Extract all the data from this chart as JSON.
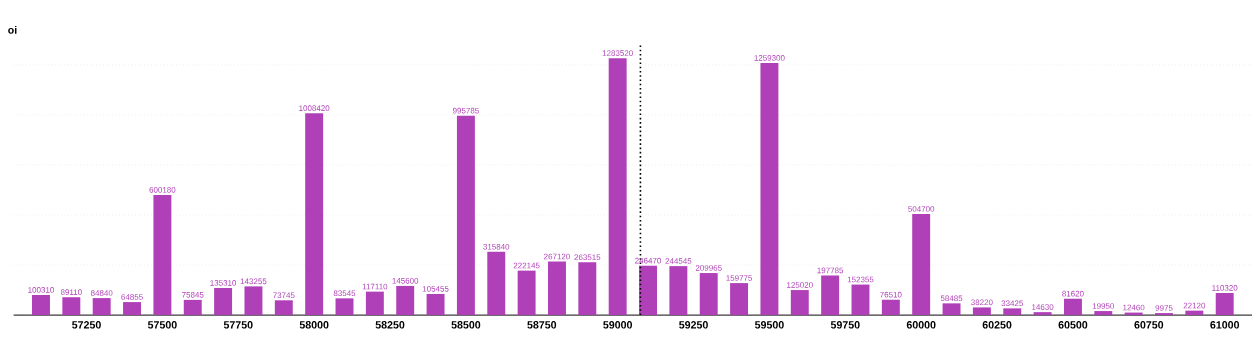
{
  "chart_data": {
    "type": "bar",
    "ylabel": "oi",
    "x": [
      57100,
      57200,
      57300,
      57400,
      57500,
      57600,
      57700,
      57800,
      57900,
      58000,
      58100,
      58200,
      58300,
      58400,
      58500,
      58600,
      58700,
      58800,
      58900,
      59000,
      59100,
      59200,
      59300,
      59400,
      59500,
      59600,
      59700,
      59800,
      59900,
      60000,
      60100,
      60200,
      60300,
      60400,
      60500,
      60600,
      60700,
      60800,
      60900,
      61000
    ],
    "values": [
      100310,
      89110,
      84840,
      64855,
      600180,
      75845,
      135310,
      143255,
      73745,
      1008420,
      83545,
      117110,
      145600,
      105455,
      995785,
      315840,
      222145,
      267120,
      263515,
      1283520,
      246470,
      244545,
      209965,
      159775,
      1259300,
      125020,
      197785,
      152355,
      76510,
      504700,
      58485,
      38220,
      33425,
      14630,
      81620,
      19950,
      12460,
      9975,
      22120,
      110320
    ],
    "color": "#b040b8",
    "data_labels": true,
    "xlim": [
      57010,
      61090
    ],
    "xticks": [
      57250,
      57500,
      57750,
      58000,
      58250,
      58500,
      58750,
      59000,
      59250,
      59500,
      59750,
      60000,
      60250,
      60500,
      60750,
      61000
    ],
    "ylim": [
      0,
      1350000
    ],
    "yticks": [
      {
        "value": 0,
        "label": null
      },
      {
        "value": 250000,
        "label": null
      },
      {
        "value": 500000,
        "label": null
      },
      {
        "value": 750000,
        "label": null
      },
      {
        "value": 1000000,
        "label": null
      },
      {
        "value": 1250000,
        "label": null
      }
    ],
    "grid": "y",
    "tick_labels": "x",
    "ref_lines": [
      {
        "axis": "x",
        "value": 59075,
        "color": "#000000",
        "line_style": "dotted"
      }
    ]
  }
}
